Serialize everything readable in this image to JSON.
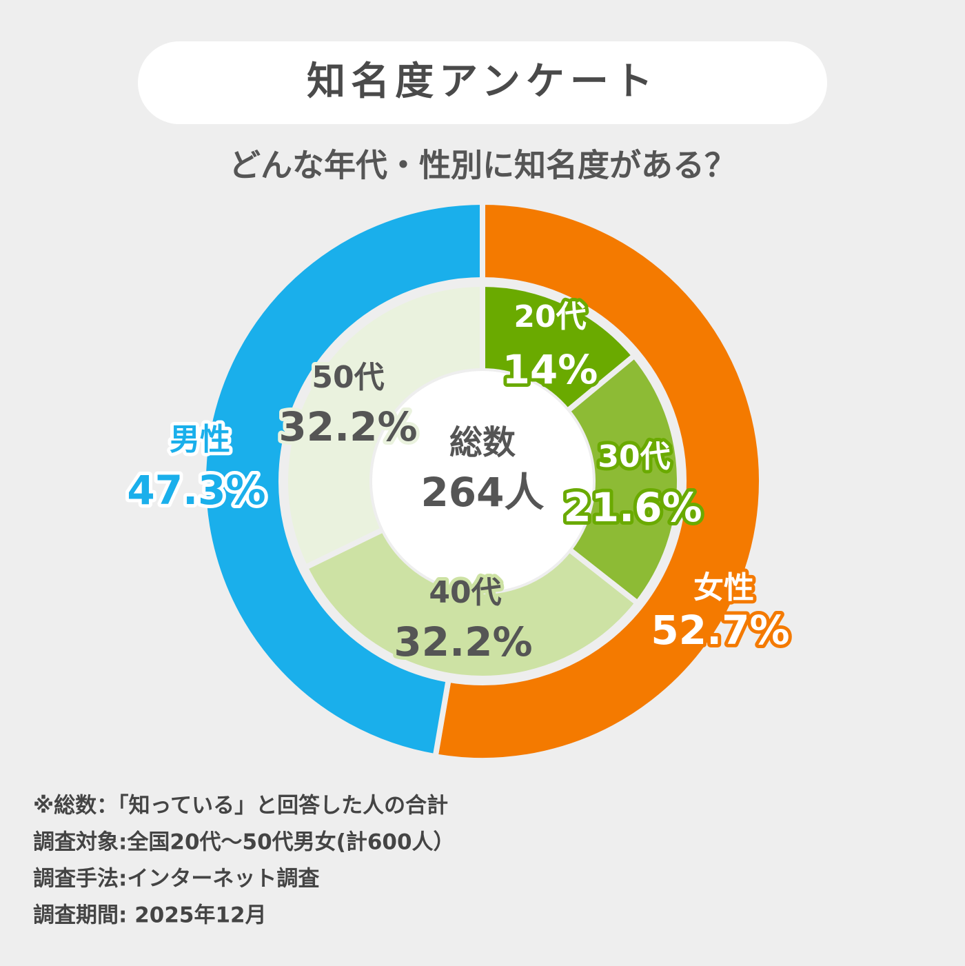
{
  "chart_data": {
    "type": "nested-donut",
    "title": "知名度アンケート",
    "subtitle": "どんな年代・性別に知名度がある？",
    "rings": [
      {
        "categories": [
          "女性",
          "男性"
        ],
        "values": [
          52.7,
          47.3
        ],
        "value_labels": [
          "52.7%",
          "47.3%"
        ],
        "colors": [
          "#f47a00",
          "#1aafeb"
        ]
      },
      {
        "categories": [
          "20代",
          "30代",
          "40代",
          "50代"
        ],
        "values": [
          14,
          21.6,
          32.2,
          32.2
        ],
        "value_labels": [
          "14%",
          "21.6%",
          "32.2%",
          "32.2%"
        ],
        "colors": [
          "#6aaa00",
          "#8dbb35",
          "#cde2a4",
          "#eaf2de"
        ]
      }
    ],
    "center_label": "総数",
    "total": 264,
    "total_label": "264人",
    "notes": [
      "※総数：「知っている」と回答した人の合計",
      "調査対象:全国20代～50代男女(計600人）",
      "調査手法:インターネット調査",
      "調査期間: 2025年12月"
    ]
  }
}
